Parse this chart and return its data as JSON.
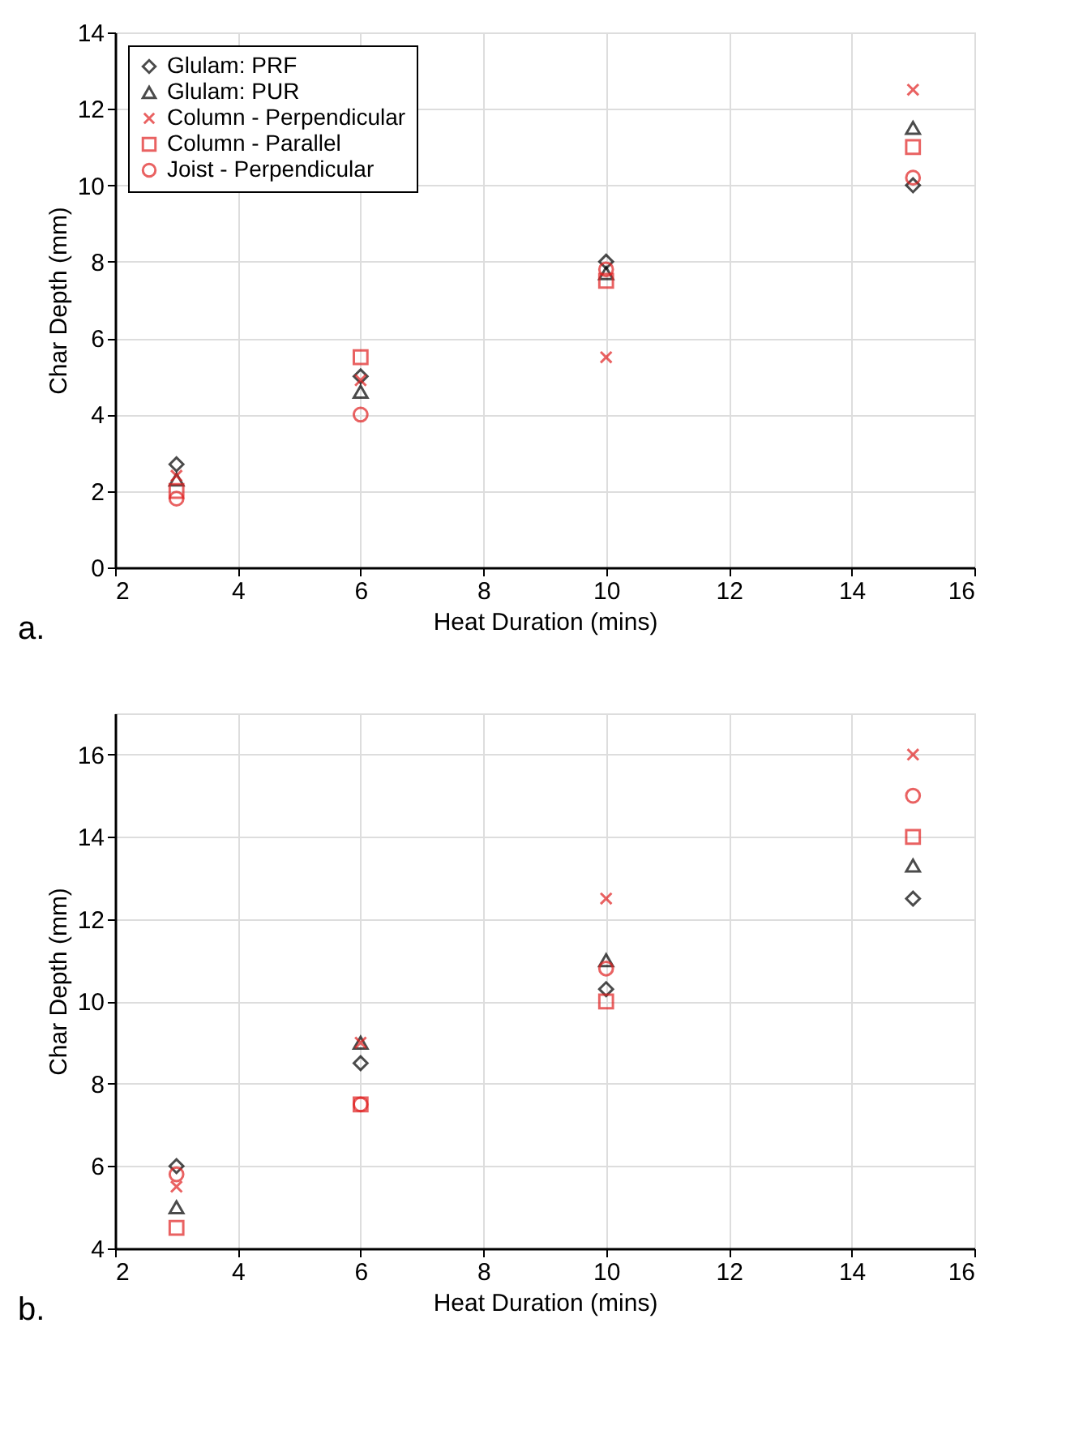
{
  "chart_data": [
    {
      "type": "scatter",
      "xlabel": "Heat Duration (mins)",
      "ylabel": "Char Depth (mm)",
      "annotations": [
        "a."
      ],
      "x": [
        3,
        6,
        10,
        15
      ],
      "xlim": [
        2,
        16
      ],
      "xticks": [
        2,
        4,
        6,
        8,
        10,
        12,
        14,
        16
      ],
      "ylim": [
        0,
        14
      ],
      "yticks": [
        0,
        2,
        4,
        6,
        8,
        10,
        12,
        14
      ],
      "grid": true,
      "legend": "top left",
      "series": [
        {
          "name": "Glulam: PRF",
          "color": "#000000",
          "marker": "diamond",
          "values": [
            2.7,
            5.0,
            8.0,
            10.0
          ]
        },
        {
          "name": "Glulam: PUR",
          "color": "#000000",
          "marker": "triangle",
          "values": [
            2.3,
            4.6,
            7.7,
            11.5
          ]
        },
        {
          "name": "Column - Perpendicular",
          "color": "#e02020",
          "marker": "cross",
          "values": [
            2.4,
            4.9,
            5.5,
            12.5
          ]
        },
        {
          "name": "Column - Parallel",
          "color": "#e02020",
          "marker": "square",
          "values": [
            2.0,
            5.5,
            7.5,
            11.0
          ]
        },
        {
          "name": "Joist - Perpendicular",
          "color": "#e02020",
          "marker": "circle",
          "values": [
            1.8,
            4.0,
            7.8,
            10.2
          ]
        }
      ]
    },
    {
      "type": "scatter",
      "xlabel": "Heat Duration (mins)",
      "ylabel": "Char Depth (mm)",
      "annotations": [
        "b."
      ],
      "x": [
        3,
        6,
        10,
        15
      ],
      "xlim": [
        2,
        16
      ],
      "xticks": [
        2,
        4,
        6,
        8,
        10,
        12,
        14,
        16
      ],
      "ylim": [
        4,
        17
      ],
      "yticks": [
        4,
        6,
        8,
        10,
        12,
        14,
        16
      ],
      "grid": true,
      "legend": "top left",
      "series": [
        {
          "name": "Glulam: PRF",
          "color": "#000000",
          "marker": "diamond",
          "values": [
            6.0,
            8.5,
            10.3,
            12.5
          ]
        },
        {
          "name": "Glulam: PUR",
          "color": "#000000",
          "marker": "triangle",
          "values": [
            5.0,
            9.0,
            11.0,
            13.3
          ]
        },
        {
          "name": "Column - Perpendicular",
          "color": "#e02020",
          "marker": "cross",
          "values": [
            5.5,
            9.0,
            12.5,
            16.0
          ]
        },
        {
          "name": "Column - Parallel",
          "color": "#e02020",
          "marker": "square",
          "values": [
            4.5,
            7.5,
            10.0,
            14.0
          ]
        },
        {
          "name": "Joist - Perpendicular",
          "color": "#e02020",
          "marker": "circle",
          "values": [
            5.8,
            7.5,
            10.8,
            15.0
          ]
        }
      ]
    }
  ]
}
